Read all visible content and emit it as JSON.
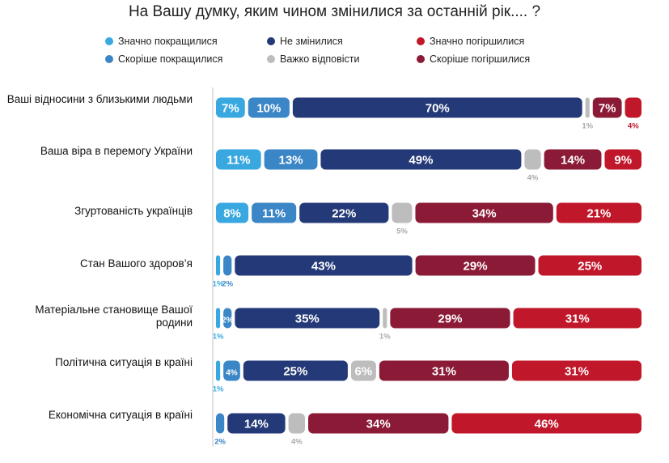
{
  "chart_data": {
    "type": "bar",
    "orientation": "horizontal",
    "stacked": true,
    "title": "На Вашу думку, яким чином змінилися за останній рік.... ?",
    "legend_position": "top",
    "categories": [
      "Ваші відносини з близькими людьми",
      "Ваша віра в перемогу України",
      "Згуртованість українців",
      "Стан Вашого здоров’я",
      "Матеріальне становище Вашої родини",
      "Політична ситуація в країні",
      "Економічна ситуація в країні"
    ],
    "series": [
      {
        "name": "Значно покращилися",
        "color": "#3aa8e0",
        "values": [
          7,
          11,
          8,
          1,
          1,
          1,
          0
        ]
      },
      {
        "name": "Скоріше покращилися",
        "color": "#3b86c6",
        "values": [
          10,
          13,
          11,
          2,
          2,
          4,
          2
        ]
      },
      {
        "name": "Не змінилися",
        "color": "#243a78",
        "values": [
          70,
          49,
          22,
          43,
          35,
          25,
          14
        ]
      },
      {
        "name": "Важко відповісти",
        "color": "#bdbdbd",
        "values": [
          1,
          4,
          5,
          0,
          1,
          6,
          4
        ]
      },
      {
        "name": "Скоріше погіршилися",
        "color": "#8b1a36",
        "values": [
          7,
          14,
          34,
          29,
          29,
          31,
          34
        ]
      },
      {
        "name": "Значно погіршилися",
        "color": "#c0182a",
        "values": [
          4,
          9,
          21,
          25,
          31,
          31,
          46
        ]
      }
    ],
    "labels_below": [
      [
        3,
        5
      ],
      [
        3
      ],
      [
        3
      ],
      [
        0,
        1
      ],
      [
        0,
        3
      ],
      [
        0
      ],
      [
        1,
        3
      ]
    ],
    "value_suffix": "%"
  }
}
